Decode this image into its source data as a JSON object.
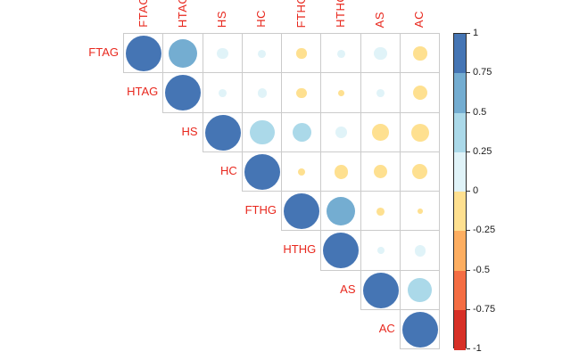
{
  "chart_data": {
    "type": "heatmap",
    "subtype": "correlation-matrix-upper-triangle",
    "title": "",
    "variables": [
      "FTAG",
      "HTAG",
      "HS",
      "HC",
      "FTHG",
      "HTHG",
      "AS",
      "AC"
    ],
    "matrix_upper": [
      [
        1,
        0.65,
        0.1,
        0.05,
        -0.08,
        0.05,
        0.13,
        -0.15
      ],
      [
        1,
        0.05,
        0.07,
        -0.08,
        -0.03,
        0.05,
        -0.16
      ],
      [
        1,
        0.47,
        0.28,
        0.1,
        -0.22,
        -0.25
      ],
      [
        1,
        -0.04,
        -0.15,
        -0.14,
        -0.18
      ],
      [
        1,
        0.65,
        -0.05,
        -0.02
      ],
      [
        1,
        0.04,
        0.1
      ],
      [
        1,
        0.45
      ],
      [
        1
      ]
    ],
    "encoding": "circle size = |correlation|, circle color = correlation sign/strength",
    "value_range": [
      -1,
      1
    ],
    "grid": true,
    "legend_position": "right"
  },
  "legend": {
    "tick_labels": [
      "1",
      "0.75",
      "0.5",
      "0.25",
      "0",
      "-0.25",
      "-0.5",
      "-0.75",
      "-1"
    ],
    "tick_values": [
      1,
      0.75,
      0.5,
      0.25,
      0,
      -0.25,
      -0.5,
      -0.75,
      -1
    ],
    "palette_top_to_bottom": [
      "#4575B4",
      "#74ADD1",
      "#ABD9E9",
      "#E0F3F8",
      "#FEE090",
      "#FDAE61",
      "#F46D43",
      "#D73027"
    ]
  },
  "colors": {
    "variable_label": "#e8281e",
    "grid_line": "#cbcbcb",
    "tick_text": "#1a1a1a",
    "background": "#ffffff"
  }
}
